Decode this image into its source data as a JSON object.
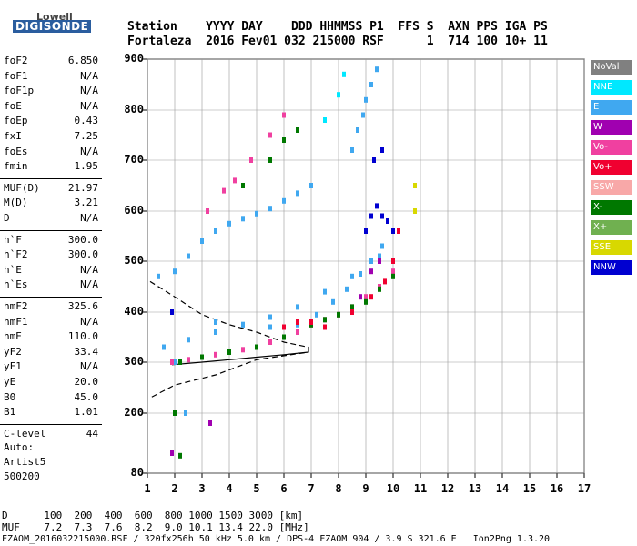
{
  "logo": {
    "line1": "Lowell",
    "line2": "DIGISONDE"
  },
  "header": {
    "row1": "Station    YYYY DAY    DDD HHMMSS P1  FFS S  AXN PPS IGA PS",
    "row2": "Fortaleza  2016 Fev01 032 215000 RSF      1  714 100 10+ 11"
  },
  "params": [
    {
      "label": "foF2",
      "value": "6.850"
    },
    {
      "label": "foF1",
      "value": "N/A"
    },
    {
      "label": "foF1p",
      "value": "N/A"
    },
    {
      "label": "foE",
      "value": "N/A"
    },
    {
      "label": "foEp",
      "value": "0.43"
    },
    {
      "label": "fxI",
      "value": "7.25"
    },
    {
      "label": "foEs",
      "value": "N/A"
    },
    {
      "label": "fmin",
      "value": "1.95"
    },
    {
      "label": "MUF(D)",
      "value": "21.97"
    },
    {
      "label": "M(D)",
      "value": "3.21"
    },
    {
      "label": "D",
      "value": "N/A"
    },
    {
      "label": "h`F",
      "value": "300.0"
    },
    {
      "label": "h`F2",
      "value": "300.0"
    },
    {
      "label": "h`E",
      "value": "N/A"
    },
    {
      "label": "h`Es",
      "value": "N/A"
    },
    {
      "label": "hmF2",
      "value": "325.6"
    },
    {
      "label": "hmF1",
      "value": "N/A"
    },
    {
      "label": "hmE",
      "value": "110.0"
    },
    {
      "label": "yF2",
      "value": "33.4"
    },
    {
      "label": "yF1",
      "value": "N/A"
    },
    {
      "label": "yE",
      "value": "20.0"
    },
    {
      "label": "B0",
      "value": "45.0"
    },
    {
      "label": "B1",
      "value": "1.01"
    },
    {
      "label": "C-level",
      "value": "44"
    }
  ],
  "artist": {
    "line1": "Auto:",
    "line2": "Artist5",
    "line3": "500200"
  },
  "legend": [
    {
      "label": "NoVal",
      "color": "#808080"
    },
    {
      "label": "NNE",
      "color": "#00e8ff"
    },
    {
      "label": "E",
      "color": "#40a8f0"
    },
    {
      "label": "W",
      "color": "#a000b0"
    },
    {
      "label": "Vo-",
      "color": "#f040a0"
    },
    {
      "label": "Vo+",
      "color": "#f00030"
    },
    {
      "label": "SSW",
      "color": "#f8a8a8"
    },
    {
      "label": "X-",
      "color": "#007800"
    },
    {
      "label": "X+",
      "color": "#70b050"
    },
    {
      "label": "SSE",
      "color": "#d8d800"
    },
    {
      "label": "NNW",
      "color": "#0000d0"
    }
  ],
  "footer": {
    "line1": "D      100  200  400  600  800 1000 1500 3000 [km]",
    "line2": "MUF    7.2  7.3  7.6  8.2  9.0 10.1 13.4 22.0 [MHz]",
    "line3": "FZAOM_2016032215000.RSF / 320fx256h 50 kHz 5.0 km / DPS-4 FZAOM 904 / 3.9 S 321.6 E   Ion2Png 1.3.20"
  },
  "chart_data": {
    "type": "scatter",
    "x_ticks": [
      1,
      2,
      3,
      4,
      5,
      6,
      7,
      8,
      9,
      10,
      11,
      12,
      13,
      14,
      15,
      16,
      17
    ],
    "y_ticks": [
      80,
      200,
      300,
      400,
      500,
      600,
      700,
      800,
      900
    ],
    "xlim": [
      1,
      17
    ],
    "ylim": [
      80,
      900
    ],
    "y_scale": "ionogram-virtual-height",
    "grid": true,
    "series": [
      {
        "name": "E",
        "color": "#40a8f0",
        "points": [
          [
            1.4,
            470
          ],
          [
            2.0,
            480
          ],
          [
            2.5,
            510
          ],
          [
            3.0,
            540
          ],
          [
            3.5,
            560
          ],
          [
            4.0,
            575
          ],
          [
            4.5,
            585
          ],
          [
            5.0,
            595
          ],
          [
            5.5,
            605
          ],
          [
            6.0,
            620
          ],
          [
            6.5,
            635
          ],
          [
            7.0,
            650
          ],
          [
            1.6,
            330
          ],
          [
            2.5,
            345
          ],
          [
            3.5,
            360
          ],
          [
            4.5,
            375
          ],
          [
            5.5,
            390
          ],
          [
            6.5,
            410
          ],
          [
            7.5,
            440
          ],
          [
            8.5,
            470
          ],
          [
            9.5,
            510
          ],
          [
            3.5,
            380
          ],
          [
            4.5,
            375
          ],
          [
            5.5,
            370
          ],
          [
            6.5,
            375
          ],
          [
            7.2,
            395
          ],
          [
            7.8,
            420
          ],
          [
            8.3,
            445
          ],
          [
            8.8,
            475
          ],
          [
            9.2,
            500
          ],
          [
            9.6,
            530
          ],
          [
            10.0,
            560
          ],
          [
            8.5,
            720
          ],
          [
            8.7,
            760
          ],
          [
            8.9,
            790
          ],
          [
            9.0,
            820
          ],
          [
            9.2,
            850
          ],
          [
            9.4,
            880
          ],
          [
            2.4,
            200
          ],
          [
            2.0,
            300
          ]
        ]
      },
      {
        "name": "Vo-",
        "color": "#f040a0",
        "points": [
          [
            1.9,
            300
          ],
          [
            2.5,
            305
          ],
          [
            3.0,
            310
          ],
          [
            3.5,
            315
          ],
          [
            4.0,
            320
          ],
          [
            4.5,
            325
          ],
          [
            5.0,
            330
          ],
          [
            5.5,
            340
          ],
          [
            6.0,
            350
          ],
          [
            6.5,
            360
          ],
          [
            7.0,
            375
          ],
          [
            7.5,
            385
          ],
          [
            8.0,
            395
          ],
          [
            8.5,
            410
          ],
          [
            9.0,
            430
          ],
          [
            9.5,
            450
          ],
          [
            10.0,
            480
          ],
          [
            3.2,
            600
          ],
          [
            3.8,
            640
          ],
          [
            4.2,
            660
          ],
          [
            4.8,
            700
          ],
          [
            5.5,
            750
          ],
          [
            6.0,
            790
          ]
        ]
      },
      {
        "name": "X-",
        "color": "#007800",
        "points": [
          [
            2.2,
            300
          ],
          [
            3.0,
            310
          ],
          [
            4.0,
            320
          ],
          [
            5.0,
            330
          ],
          [
            6.0,
            350
          ],
          [
            7.0,
            375
          ],
          [
            7.5,
            385
          ],
          [
            8.0,
            395
          ],
          [
            8.5,
            410
          ],
          [
            9.0,
            420
          ],
          [
            9.5,
            445
          ],
          [
            10.0,
            470
          ],
          [
            4.5,
            650
          ],
          [
            5.5,
            700
          ],
          [
            6.0,
            740
          ],
          [
            6.5,
            760
          ],
          [
            2.0,
            200
          ],
          [
            2.2,
            115
          ]
        ]
      },
      {
        "name": "Vo+",
        "color": "#f00030",
        "points": [
          [
            6.0,
            370
          ],
          [
            6.5,
            380
          ],
          [
            7.0,
            380
          ],
          [
            7.5,
            370
          ],
          [
            8.5,
            400
          ],
          [
            9.2,
            430
          ],
          [
            9.7,
            460
          ],
          [
            10.0,
            500
          ],
          [
            10.2,
            560
          ]
        ]
      },
      {
        "name": "NNW",
        "color": "#0000d0",
        "points": [
          [
            9.0,
            560
          ],
          [
            9.2,
            590
          ],
          [
            9.4,
            610
          ],
          [
            9.6,
            590
          ],
          [
            9.8,
            580
          ],
          [
            10.0,
            560
          ],
          [
            9.3,
            700
          ],
          [
            9.6,
            720
          ],
          [
            1.9,
            400
          ]
        ]
      },
      {
        "name": "W",
        "color": "#a000b0",
        "points": [
          [
            8.8,
            430
          ],
          [
            9.2,
            480
          ],
          [
            9.5,
            500
          ],
          [
            3.3,
            180
          ],
          [
            1.9,
            120
          ]
        ]
      },
      {
        "name": "NNE",
        "color": "#00e8ff",
        "points": [
          [
            7.5,
            780
          ],
          [
            8.0,
            830
          ],
          [
            8.2,
            870
          ]
        ]
      },
      {
        "name": "SSE",
        "color": "#d8d800",
        "points": [
          [
            10.8,
            650
          ],
          [
            10.8,
            600
          ]
        ]
      }
    ],
    "lines": [
      {
        "style": "dashed",
        "points": [
          [
            1.1,
            460
          ],
          [
            2.0,
            430
          ],
          [
            3.0,
            395
          ],
          [
            4.0,
            375
          ],
          [
            5.0,
            360
          ],
          [
            6.0,
            340
          ],
          [
            6.9,
            330
          ],
          [
            6.9,
            320
          ],
          [
            5.0,
            305
          ],
          [
            3.5,
            275
          ],
          [
            2.0,
            255
          ],
          [
            1.1,
            230
          ]
        ]
      },
      {
        "style": "solid",
        "points": [
          [
            1.9,
            295
          ],
          [
            3.0,
            300
          ],
          [
            4.0,
            305
          ],
          [
            5.0,
            310
          ],
          [
            6.0,
            315
          ],
          [
            6.9,
            320
          ]
        ]
      }
    ]
  }
}
